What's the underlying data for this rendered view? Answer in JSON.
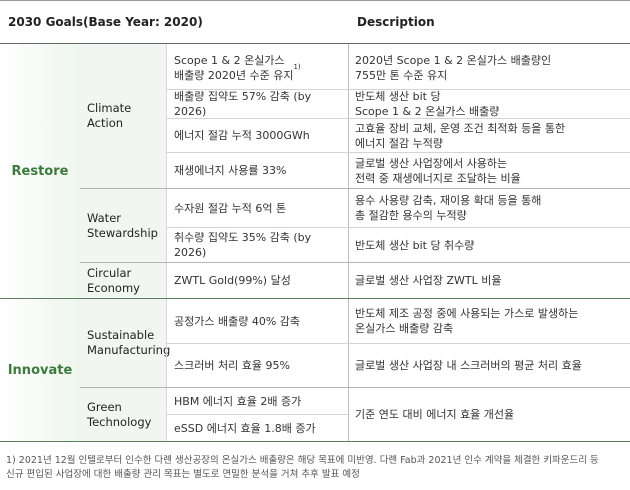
{
  "header": {
    "goals_label": "2030 Goals(Base Year: 2020)",
    "description_label": "Description"
  },
  "categories": {
    "restore": "Restore",
    "innovate": "Innovate"
  },
  "subcategories": {
    "climate_action": "Climate\nAction",
    "water_stewardship": "Water\nStewardship",
    "circular_economy": "Circular\nEconomy",
    "sustainable_manufacturing": "Sustainable\nManufacturing",
    "green_technology": "Green\nTechnology"
  },
  "rows": [
    {
      "goal": "Scope 1 & 2 온실가스\n배출량 2020년 수준 유지",
      "goal_sup": "1)",
      "description": "2020년 Scope 1 & 2 온실가스 배출량인\n755만 톤 수준 유지"
    },
    {
      "goal": "배출량 집약도 57% 감축 (by 2026)",
      "description": "반도체 생산 bit 당\nScope 1 & 2 온실가스 배출량"
    },
    {
      "goal": "에너지 절감 누적 3000GWh",
      "description": "고효율 장비 교체, 운영 조건 최적화 등을 통한\n에너지 절감 누적량"
    },
    {
      "goal": "재생에너지 사용률 33%",
      "description": "글로벌 생산 사업장에서 사용하는\n전력 중 재생에너지로 조달하는 비율"
    },
    {
      "goal": "수자원 절감 누적 6억 톤",
      "description": "용수 사용량 감축, 재이용 확대 등을 통해\n총 절감한 용수의 누적량"
    },
    {
      "goal": "취수량 집약도 35% 감축 (by 2026)",
      "description": "반도체 생산 bit 당 취수량"
    },
    {
      "goal": "ZWTL Gold(99%) 달성",
      "description": "글로벌 생산 사업장 ZWTL 비율"
    },
    {
      "goal": "공정가스 배출량 40% 감축",
      "description": "반도체 제조 공정 중에 사용되는 가스로 발생하는\n온실가스 배출량 감축"
    },
    {
      "goal": "스크러버 처리 효율 95%",
      "description": "글로벌 생산 사업장 내 스크러버의 평균 처리 효율"
    },
    {
      "goal": "HBM 에너지 효율 2배 증가",
      "description": "기준 연도 대비 에너지 효율 개선율"
    },
    {
      "goal": "eSSD 에너지 효율 1.8배 증가"
    }
  ],
  "footnote": "1) 2021년 12월 인텔로부터 인수한 다롄 생산공장의 온실가스 배출량은 해당 목표에 미반영. 다롄 Fab과 2021년 인수 계약을 체결한 키파운드리 등\n   신규 편입된 사업장에 대한 배출량 관리 목표는 별도로 면밀한 분석을 거쳐 추후 발표 예정"
}
